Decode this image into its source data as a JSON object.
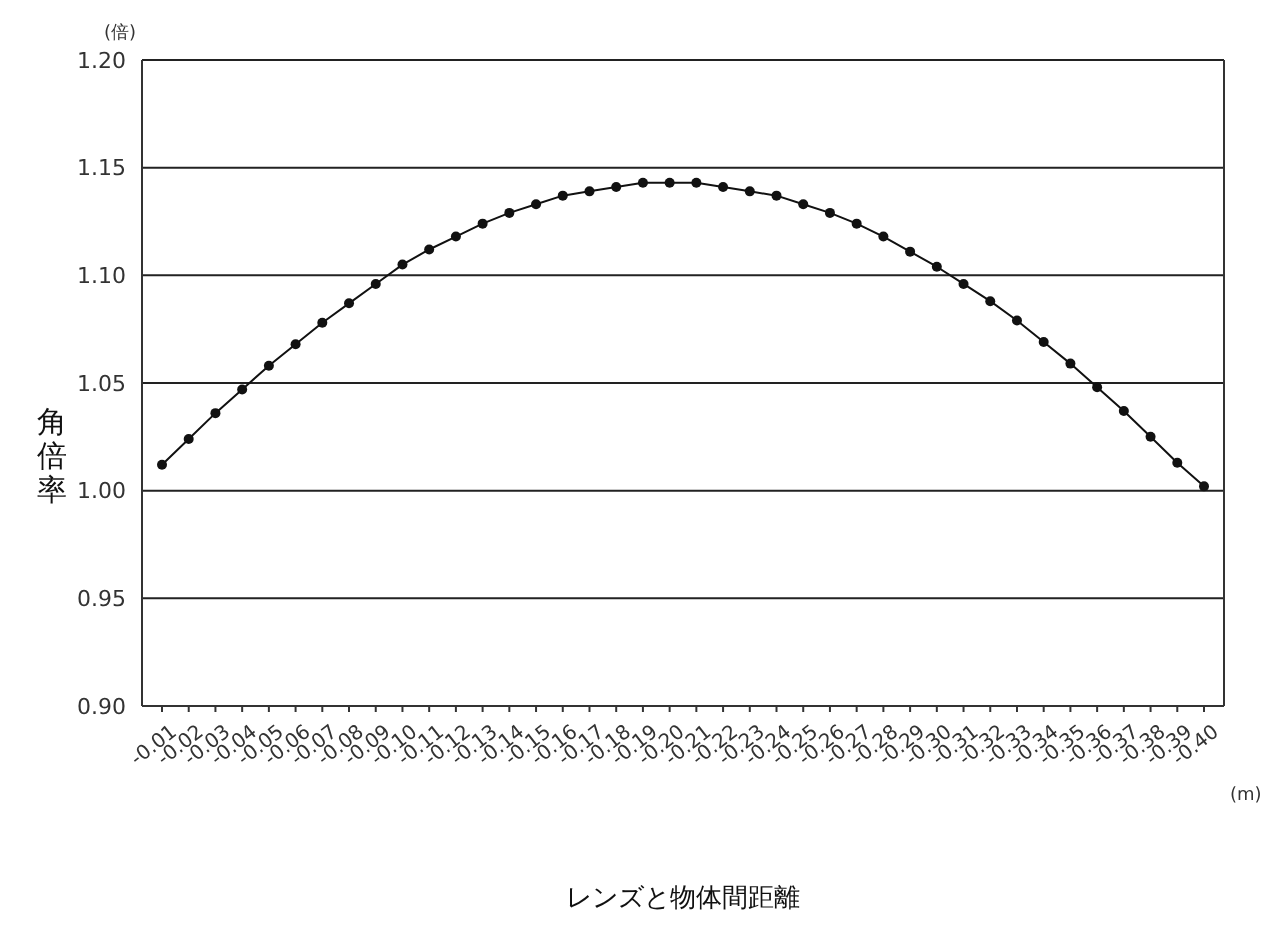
{
  "chart_data": {
    "type": "line",
    "xlabel": "レンズと物体間距離",
    "ylabel": "角倍率",
    "categories": [
      "-0.01",
      "-0.02",
      "-0.03",
      "-0.04",
      "-0.05",
      "-0.06",
      "-0.07",
      "-0.08",
      "-0.09",
      "-0.10",
      "-0.11",
      "-0.12",
      "-0.13",
      "-0.14",
      "-0.15",
      "-0.16",
      "-0.17",
      "-0.18",
      "-0.19",
      "-0.20",
      "-0.21",
      "-0.22",
      "-0.23",
      "-0.24",
      "-0.25",
      "-0.26",
      "-0.27",
      "-0.28",
      "-0.29",
      "-0.30",
      "-0.31",
      "-0.32",
      "-0.33",
      "-0.34",
      "-0.35",
      "-0.36",
      "-0.37",
      "-0.38",
      "-0.39",
      "-0.40"
    ],
    "series": [
      {
        "color": "#111111",
        "values": [
          1.012,
          1.024,
          1.036,
          1.047,
          1.058,
          1.068,
          1.078,
          1.087,
          1.096,
          1.105,
          1.112,
          1.118,
          1.124,
          1.129,
          1.133,
          1.137,
          1.139,
          1.141,
          1.143,
          1.143,
          1.143,
          1.141,
          1.139,
          1.137,
          1.133,
          1.129,
          1.124,
          1.118,
          1.111,
          1.104,
          1.096,
          1.088,
          1.079,
          1.069,
          1.059,
          1.048,
          1.037,
          1.025,
          1.013,
          1.002
        ]
      }
    ],
    "ylim": [
      0.9,
      1.2
    ],
    "yticks": [
      {
        "value": 0.9,
        "label": "0.90"
      },
      1.05,
      {
        "value": 1.0,
        "label": "1.00"
      },
      0.95,
      {
        "value": 1.1,
        "label": "1.10"
      },
      1.15,
      {
        "value": 1.2,
        "label": "1.20"
      }
    ],
    "grid": "y",
    "marker": "circle",
    "line_style": "solid",
    "annotations": [
      "(倍)",
      "(m)"
    ]
  }
}
